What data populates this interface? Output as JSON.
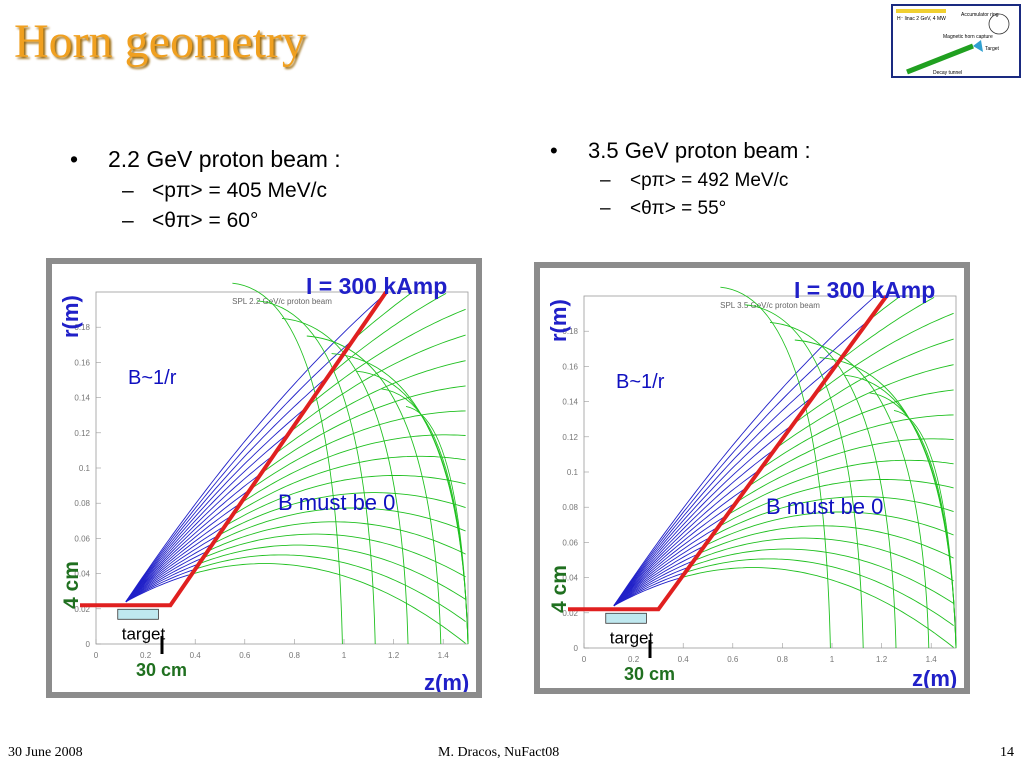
{
  "title": "Horn geometry",
  "thumbnail": {
    "labels": [
      "H⁻ linac 2 GeV, 4 MW",
      "Accumulator ring",
      "Magnetic horn capture",
      "Target",
      "Decay tunnel"
    ]
  },
  "left_bullets": {
    "heading": "2.2 GeV proton beam :",
    "momentum": "<pπ> = 405 MeV/c",
    "angle": "<θπ> = 60°"
  },
  "right_bullets": {
    "heading": "3.5 GeV proton beam :",
    "momentum": "<pπ> = 492 MeV/c",
    "angle": "<θπ> = 55°"
  },
  "plots": [
    {
      "plot_title": "SPL 2.2 GeV/c proton beam",
      "current_label": "I = 300 kAmp",
      "r_axis": "r(m)",
      "z_axis": "z(m)",
      "field_label": "B~1/r",
      "zero_label": "B must be 0",
      "target_label": "target",
      "height_label": "4 cm",
      "length_label": "30 cm",
      "x_ticks": [
        "0",
        "0.2",
        "0.4",
        "0.6",
        "0.8",
        "1",
        "1.2",
        "1.4"
      ],
      "y_ticks": [
        "0",
        "0.02",
        "0.04",
        "0.06",
        "0.08",
        "0.1",
        "0.12",
        "0.14",
        "0.16",
        "0.18"
      ]
    },
    {
      "plot_title": "SPL 3.5 GeV/c proton beam",
      "current_label": "I = 300 kAmp",
      "r_axis": "r(m)",
      "z_axis": "z(m)",
      "field_label": "B~1/r",
      "zero_label": "B must be 0",
      "target_label": "target",
      "height_label": "4 cm",
      "length_label": "30 cm",
      "x_ticks": [
        "0",
        "0.2",
        "0.4",
        "0.6",
        "0.8",
        "1",
        "1.2",
        "1.4"
      ],
      "y_ticks": [
        "0",
        "0.02",
        "0.04",
        "0.06",
        "0.08",
        "0.1",
        "0.12",
        "0.14",
        "0.16",
        "0.18"
      ]
    }
  ],
  "colors": {
    "title": "#f0a020",
    "horn": "#e02020",
    "inside": "#2020c8",
    "outside": "#20c020",
    "annotation": "#1010c0"
  },
  "footer": {
    "date": "30 June 2008",
    "author": "M. Dracos, NuFact08",
    "page": "14"
  }
}
